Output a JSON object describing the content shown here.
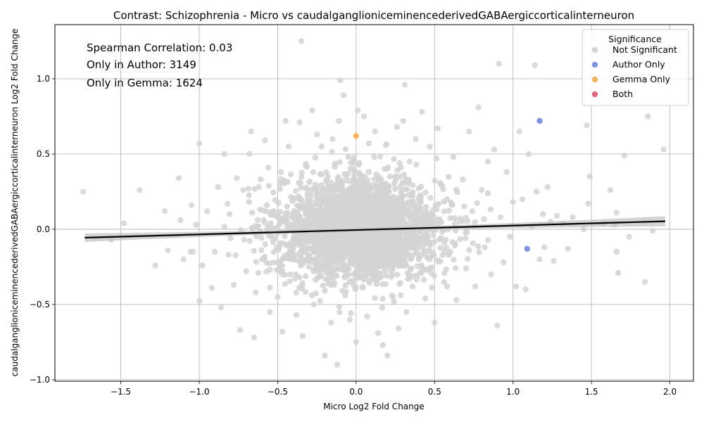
{
  "chart_data": {
    "type": "scatter",
    "title": "Contrast: Schizophrenia - Micro vs caudalganglioniceminencederivedGABAergiccorticalinterneuron",
    "xlabel": "Micro Log2 Fold Change",
    "ylabel": "caudalganglioniceminencederivedGABAergiccorticalinterneuron Log2 Fold Change",
    "xlim": [
      -1.92,
      2.15
    ],
    "ylim": [
      -1.01,
      1.36
    ],
    "xticks": [
      -1.5,
      -1.0,
      -0.5,
      0.0,
      0.5,
      1.0,
      1.5,
      2.0
    ],
    "xtick_labels": [
      "−1.5",
      "−1.0",
      "−0.5",
      "0.0",
      "0.5",
      "1.0",
      "1.5",
      "2.0"
    ],
    "yticks": [
      -1.0,
      -0.5,
      0.0,
      0.5,
      1.0
    ],
    "ytick_labels": [
      "−1.0",
      "−0.5",
      "0.0",
      "0.5",
      "1.0"
    ],
    "grid": true,
    "annotations": [
      "Spearman Correlation: 0.03",
      "Only in Author: 3149",
      "Only in Gemma: 1624"
    ],
    "legend": {
      "title": "Significance",
      "placement": "top-right",
      "entries": [
        {
          "label": "Not Significant",
          "color": "#d3d3d3"
        },
        {
          "label": "Author Only",
          "color": "#7f95e0"
        },
        {
          "label": "Gemma Only",
          "color": "#f5b560"
        },
        {
          "label": "Both",
          "color": "#e0697f"
        }
      ]
    },
    "regression_line": {
      "color": "#000000",
      "ci_color": "#c0c0c0",
      "points": [
        [
          -1.73,
          -0.056
        ],
        [
          1.97,
          0.053
        ]
      ]
    },
    "series": [
      {
        "name": "Not Significant",
        "color": "#d3d3d3",
        "points": [
          [
            -1.74,
            0.25
          ],
          [
            -1.56,
            -0.07
          ],
          [
            -1.48,
            0.04
          ],
          [
            -1.38,
            0.26
          ],
          [
            -1.28,
            -0.24
          ],
          [
            -1.22,
            0.12
          ],
          [
            -1.2,
            -0.14
          ],
          [
            -1.13,
            0.34
          ],
          [
            -1.12,
            0.06
          ],
          [
            -1.1,
            -0.2
          ],
          [
            -1.05,
            0.16
          ],
          [
            -1.04,
            -0.15
          ],
          [
            -1.02,
            0.03
          ],
          [
            -1.0,
            0.57
          ],
          [
            -0.98,
            -0.24
          ],
          [
            -0.95,
            0.12
          ],
          [
            -0.92,
            -0.39
          ],
          [
            -0.9,
            -0.15
          ],
          [
            -0.88,
            0.28
          ],
          [
            -0.86,
            -0.52
          ],
          [
            -0.84,
            0.5
          ],
          [
            -0.82,
            0.17
          ],
          [
            -0.8,
            -0.06
          ],
          [
            -0.78,
            -0.37
          ],
          [
            -0.76,
            0.34
          ],
          [
            -0.74,
            -0.67
          ],
          [
            -0.72,
            0.26
          ],
          [
            -0.7,
            -0.28
          ],
          [
            -0.68,
            0.5
          ],
          [
            -0.67,
            0.65
          ],
          [
            -0.65,
            -0.72
          ],
          [
            -0.64,
            -0.42
          ],
          [
            -0.62,
            0.28
          ],
          [
            -0.6,
            -0.2
          ],
          [
            -0.58,
            0.59
          ],
          [
            -0.56,
            0.41
          ],
          [
            -0.55,
            -0.55
          ],
          [
            -0.53,
            0.12
          ],
          [
            -0.5,
            -0.45
          ],
          [
            -0.48,
            0.38
          ],
          [
            -0.47,
            -0.68
          ],
          [
            -0.45,
            0.72
          ],
          [
            -0.43,
            0.55
          ],
          [
            -0.42,
            -0.3
          ],
          [
            -0.4,
            0.2
          ],
          [
            -0.38,
            -0.57
          ],
          [
            -0.36,
            0.71
          ],
          [
            -0.35,
            1.25
          ],
          [
            -0.34,
            -0.71
          ],
          [
            -0.32,
            0.42
          ],
          [
            -0.3,
            -0.25
          ],
          [
            -0.28,
            0.79
          ],
          [
            -0.27,
            -0.5
          ],
          [
            -0.25,
            0.63
          ],
          [
            -0.23,
            -0.14
          ],
          [
            -0.22,
            0.55
          ],
          [
            -0.2,
            -0.84
          ],
          [
            -0.18,
            0.35
          ],
          [
            -0.16,
            -0.62
          ],
          [
            -0.15,
            0.6
          ],
          [
            -0.14,
            -0.37
          ],
          [
            -0.12,
            -0.9
          ],
          [
            -0.11,
            0.72
          ],
          [
            -0.1,
            0.99
          ],
          [
            -0.09,
            0.3
          ],
          [
            -0.08,
            0.89
          ],
          [
            -0.07,
            -0.44
          ],
          [
            -0.05,
            0.48
          ],
          [
            -0.04,
            -0.6
          ],
          [
            -0.03,
            0.18
          ],
          [
            0.0,
            -0.75
          ],
          [
            0.01,
            0.79
          ],
          [
            0.02,
            0.44
          ],
          [
            0.03,
            -0.32
          ],
          [
            0.05,
            0.75
          ],
          [
            0.07,
            -0.58
          ],
          [
            0.08,
            0.57
          ],
          [
            0.1,
            -0.2
          ],
          [
            0.12,
            0.65
          ],
          [
            0.14,
            -0.69
          ],
          [
            0.16,
            0.33
          ],
          [
            0.17,
            -0.77
          ],
          [
            0.19,
            0.56
          ],
          [
            0.2,
            -0.84
          ],
          [
            0.22,
            0.16
          ],
          [
            0.24,
            -0.48
          ],
          [
            0.26,
            0.68
          ],
          [
            0.27,
            -0.66
          ],
          [
            0.28,
            0.28
          ],
          [
            0.3,
            0.72
          ],
          [
            0.31,
            0.96
          ],
          [
            0.32,
            -0.55
          ],
          [
            0.34,
            0.45
          ],
          [
            0.36,
            -0.38
          ],
          [
            0.38,
            0.6
          ],
          [
            0.4,
            -0.2
          ],
          [
            0.42,
            0.78
          ],
          [
            0.44,
            -0.46
          ],
          [
            0.45,
            0.1
          ],
          [
            0.47,
            0.55
          ],
          [
            0.5,
            -0.62
          ],
          [
            0.52,
            0.67
          ],
          [
            0.54,
            0.3
          ],
          [
            0.56,
            -0.35
          ],
          [
            0.58,
            0.2
          ],
          [
            0.6,
            -0.15
          ],
          [
            0.62,
            0.48
          ],
          [
            0.64,
            -0.47
          ],
          [
            0.66,
            0.05
          ],
          [
            0.68,
            0.33
          ],
          [
            0.7,
            -0.26
          ],
          [
            0.72,
            0.65
          ],
          [
            0.74,
            0.12
          ],
          [
            0.76,
            -0.38
          ],
          [
            0.78,
            0.81
          ],
          [
            0.8,
            0.26
          ],
          [
            0.82,
            -0.12
          ],
          [
            0.84,
            0.45
          ],
          [
            0.86,
            -0.3
          ],
          [
            0.88,
            0.53
          ],
          [
            0.9,
            -0.64
          ],
          [
            0.91,
            1.1
          ],
          [
            0.92,
            0.08
          ],
          [
            0.94,
            -0.22
          ],
          [
            0.96,
            0.38
          ],
          [
            0.98,
            -0.05
          ],
          [
            1.0,
            0.18
          ],
          [
            1.02,
            -0.38
          ],
          [
            1.04,
            0.65
          ],
          [
            1.06,
            0.2
          ],
          [
            1.08,
            -0.4
          ],
          [
            1.1,
            0.5
          ],
          [
            1.12,
            0.02
          ],
          [
            1.14,
            1.09
          ],
          [
            1.15,
            0.25
          ],
          [
            1.17,
            -0.2
          ],
          [
            1.19,
            0.1
          ],
          [
            1.2,
            -0.12
          ],
          [
            1.22,
            0.28
          ],
          [
            1.24,
            0.05
          ],
          [
            1.26,
            -0.21
          ],
          [
            1.28,
            0.09
          ],
          [
            1.32,
            0.04
          ],
          [
            1.35,
            -0.13
          ],
          [
            1.38,
            0.08
          ],
          [
            1.45,
            0.0
          ],
          [
            1.47,
            0.69
          ],
          [
            1.48,
            0.17
          ],
          [
            1.49,
            0.35
          ],
          [
            1.58,
            0.04
          ],
          [
            1.62,
            0.26
          ],
          [
            1.65,
            0.03
          ],
          [
            1.66,
            -0.15
          ],
          [
            1.66,
            0.11
          ],
          [
            1.67,
            -0.29
          ],
          [
            1.71,
            0.49
          ],
          [
            1.74,
            -0.05
          ],
          [
            1.84,
            -0.35
          ],
          [
            1.86,
            0.75
          ],
          [
            1.89,
            -0.01
          ],
          [
            1.96,
            0.53
          ]
        ]
      },
      {
        "name": "Author Only",
        "color": "#7f95e0",
        "points": [
          [
            1.17,
            0.72
          ],
          [
            1.09,
            -0.13
          ]
        ]
      },
      {
        "name": "Gemma Only",
        "color": "#f5b560",
        "points": [
          [
            0.0,
            0.62
          ]
        ]
      },
      {
        "name": "Both",
        "color": "#e0697f",
        "points": []
      }
    ]
  }
}
